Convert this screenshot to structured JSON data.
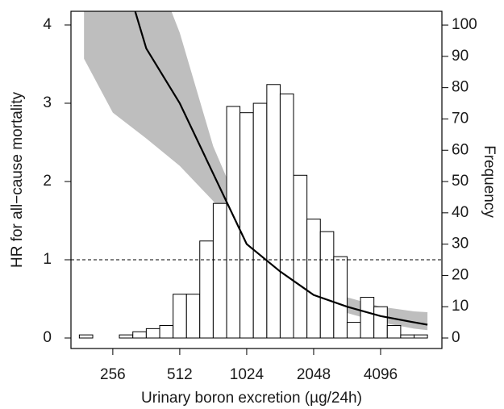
{
  "chart_data": {
    "type": "histogram_line",
    "xlabel": "Urinary boron excretion (µg/24h)",
    "ylabel": "HR for all−cause mortality",
    "y2label": "Frequency",
    "xscale": "log2",
    "xlim": [
      166,
      7727
    ],
    "xticks": [
      256,
      512,
      1024,
      2048,
      4096
    ],
    "ylim": [
      -0.134,
      4.175
    ],
    "yticks": [
      0,
      1,
      2,
      3,
      4
    ],
    "y2lim": [
      -3.35,
      104.4
    ],
    "y2ticks": [
      0,
      10,
      20,
      30,
      40,
      50,
      60,
      70,
      80,
      90,
      100
    ],
    "reference_line": 1,
    "histogram": {
      "axis": "y2",
      "color": "#ffffff",
      "bins": [
        181,
        208,
        239,
        274,
        315,
        362,
        416,
        478,
        549,
        630,
        724,
        832,
        955,
        1097,
        1261,
        1448,
        1663,
        1911,
        2195,
        2521,
        2896,
        3327,
        3822,
        4390,
        5043,
        5793,
        6654
      ],
      "counts": [
        1,
        0,
        0,
        1,
        2,
        3,
        4,
        14,
        14,
        31,
        43,
        74,
        72,
        75,
        81,
        78,
        52,
        38,
        34,
        26,
        5,
        13,
        10,
        4,
        1,
        1
      ]
    },
    "line": {
      "color": "#000000",
      "x": [
        323,
        362,
        512,
        724,
        1024,
        1448,
        2048,
        2896,
        4096,
        5793,
        6654
      ],
      "values": [
        4.17,
        3.7,
        3.0,
        2.1,
        1.2,
        0.85,
        0.55,
        0.4,
        0.28,
        0.2,
        0.17
      ]
    },
    "band": {
      "color": "#bebebe",
      "x": [
        190,
        256,
        362,
        512,
        724,
        1024,
        1448,
        2048,
        2896,
        4096,
        5793,
        6654
      ],
      "upper": [
        7,
        6,
        5.0,
        3.9,
        2.45,
        1.45,
        0.95,
        0.68,
        0.52,
        0.4,
        0.34,
        0.33
      ],
      "lower": [
        3.57,
        2.88,
        2.55,
        2.2,
        1.75,
        1.15,
        0.78,
        0.48,
        0.32,
        0.2,
        0.12,
        0.1
      ]
    }
  }
}
